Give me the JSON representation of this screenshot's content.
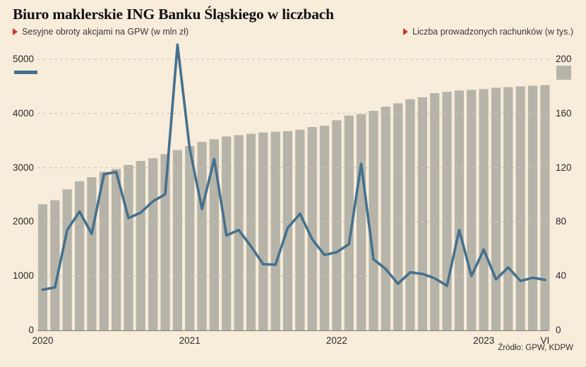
{
  "title": "Biuro maklerskie ING Banku Śląskiego w liczbach",
  "source": "Źródło: GPW, KDPW",
  "legend": {
    "left": "Sesyjne obroty akcjami na GPW (w mln zł)",
    "right": "Liczba prowadzonych rachunków (w tys.)"
  },
  "colors": {
    "background": "#f8ecdb",
    "bar": "#b6b4a8",
    "line": "#45718e",
    "accent_red": "#d0342c",
    "grid": "#ccc5b4",
    "axis": "#8c8677",
    "text": "#2b2b2b"
  },
  "chart_data": {
    "type": "combo",
    "title": "Biuro maklerskie ING Banku Śląskiego w liczbach",
    "grid": "dashed horizontal",
    "legend_position": "top",
    "categories": [
      "2020-01",
      "2020-02",
      "2020-03",
      "2020-04",
      "2020-05",
      "2020-06",
      "2020-07",
      "2020-08",
      "2020-09",
      "2020-10",
      "2020-11",
      "2020-12",
      "2021-01",
      "2021-02",
      "2021-03",
      "2021-04",
      "2021-05",
      "2021-06",
      "2021-07",
      "2021-08",
      "2021-09",
      "2021-10",
      "2021-11",
      "2021-12",
      "2022-01",
      "2022-02",
      "2022-03",
      "2022-04",
      "2022-05",
      "2022-06",
      "2022-07",
      "2022-08",
      "2022-09",
      "2022-10",
      "2022-11",
      "2022-12",
      "2023-01",
      "2023-02",
      "2023-03",
      "2023-04",
      "2023-05",
      "2023-06"
    ],
    "series": [
      {
        "name": "Liczba prowadzonych rachunków (w tys.)",
        "type": "bar",
        "axis": "right",
        "values": [
          93,
          96,
          104,
          110,
          113,
          117,
          119,
          122,
          125,
          127,
          130,
          133,
          136,
          139,
          141,
          143,
          144,
          145,
          146,
          146.5,
          147,
          148,
          150,
          151,
          155,
          158.5,
          159.5,
          162,
          165,
          167.5,
          170.5,
          172,
          175,
          176,
          177,
          177.5,
          178,
          179,
          179.5,
          180,
          180.5,
          181
        ]
      },
      {
        "name": "Sesyjne obroty akcjami na GPW (w mln zł)",
        "type": "line",
        "axis": "left",
        "values": [
          750,
          790,
          1850,
          2190,
          1780,
          2880,
          2920,
          2070,
          2170,
          2380,
          2510,
          5270,
          3350,
          2240,
          3160,
          1750,
          1850,
          1550,
          1220,
          1210,
          1890,
          2150,
          1680,
          1390,
          1440,
          1590,
          3070,
          1310,
          1130,
          860,
          1070,
          1040,
          960,
          820,
          1850,
          1000,
          1490,
          940,
          1160,
          910,
          970,
          930
        ]
      }
    ],
    "left_axis": {
      "label": "w mln zł",
      "range": [
        0,
        5000
      ],
      "ticks": [
        0,
        1000,
        2000,
        3000,
        4000,
        5000
      ]
    },
    "right_axis": {
      "label": "w tys.",
      "range": [
        0,
        200
      ],
      "ticks": [
        0,
        40,
        80,
        120,
        160,
        200
      ]
    },
    "x_ticks": [
      {
        "label": "2020",
        "index": 0
      },
      {
        "label": "2021",
        "index": 12
      },
      {
        "label": "2022",
        "index": 24
      },
      {
        "label": "2023",
        "index": 36
      },
      {
        "label": "VI",
        "index": 41
      }
    ]
  }
}
